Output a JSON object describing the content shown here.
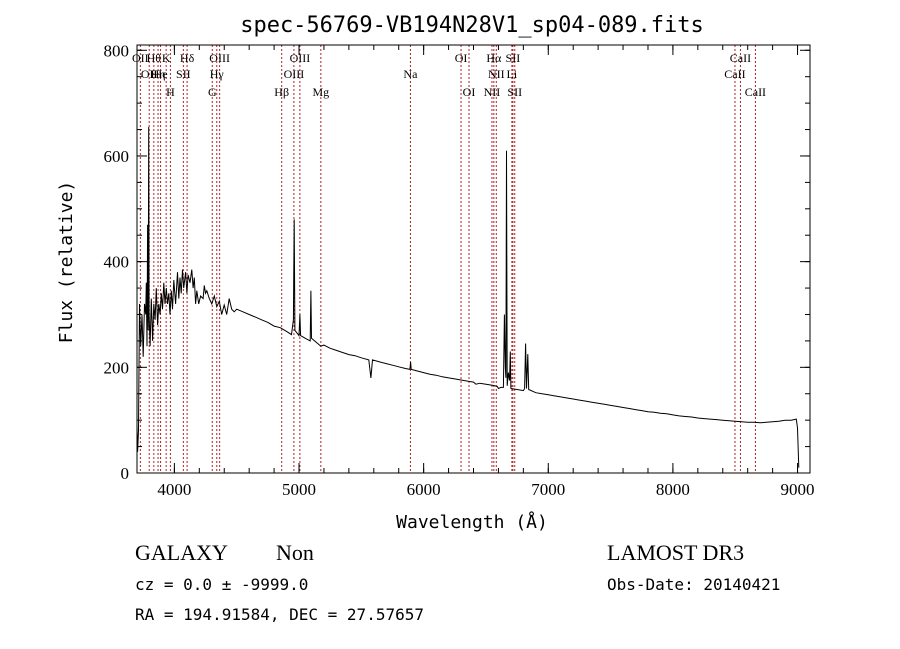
{
  "chart_data": {
    "type": "line",
    "title": "spec-56769-VB194N28V1_sp04-089.fits",
    "xlabel": "Wavelength (Å)",
    "ylabel": "Flux (relative)",
    "xlim": [
      3700,
      9100
    ],
    "ylim": [
      0,
      810
    ],
    "x_ticks": [
      4000,
      5000,
      6000,
      7000,
      8000,
      9000
    ],
    "y_ticks": [
      0,
      200,
      400,
      600,
      800
    ],
    "x_tick_labels": [
      "4000",
      "5000",
      "6000",
      "7000",
      "8000",
      "9000"
    ],
    "y_tick_labels": [
      "0",
      "200",
      "400",
      "600",
      "800"
    ],
    "series": [
      {
        "name": "flux",
        "points": [
          [
            3700,
            90
          ],
          [
            3705,
            40
          ],
          [
            3712,
            80
          ],
          [
            3720,
            320
          ],
          [
            3730,
            240
          ],
          [
            3740,
            300
          ],
          [
            3750,
            220
          ],
          [
            3760,
            320
          ],
          [
            3770,
            300
          ],
          [
            3775,
            360
          ],
          [
            3780,
            240
          ],
          [
            3785,
            470
          ],
          [
            3790,
            270
          ],
          [
            3794,
            655
          ],
          [
            3797,
            300
          ],
          [
            3805,
            240
          ],
          [
            3815,
            330
          ],
          [
            3825,
            250
          ],
          [
            3835,
            320
          ],
          [
            3845,
            290
          ],
          [
            3855,
            350
          ],
          [
            3865,
            280
          ],
          [
            3875,
            320
          ],
          [
            3885,
            300
          ],
          [
            3895,
            340
          ],
          [
            3905,
            310
          ],
          [
            3915,
            360
          ],
          [
            3925,
            320
          ],
          [
            3935,
            350
          ],
          [
            3945,
            320
          ],
          [
            3955,
            340
          ],
          [
            3965,
            300
          ],
          [
            3975,
            345
          ],
          [
            3985,
            310
          ],
          [
            3995,
            365
          ],
          [
            4010,
            320
          ],
          [
            4025,
            380
          ],
          [
            4035,
            330
          ],
          [
            4045,
            370
          ],
          [
            4055,
            340
          ],
          [
            4065,
            385
          ],
          [
            4075,
            350
          ],
          [
            4090,
            380
          ],
          [
            4100,
            340
          ],
          [
            4110,
            375
          ],
          [
            4125,
            360
          ],
          [
            4140,
            385
          ],
          [
            4150,
            350
          ],
          [
            4160,
            370
          ],
          [
            4170,
            320
          ],
          [
            4180,
            345
          ],
          [
            4195,
            320
          ],
          [
            4210,
            335
          ],
          [
            4230,
            330
          ],
          [
            4240,
            355
          ],
          [
            4250,
            340
          ],
          [
            4260,
            345
          ],
          [
            4280,
            330
          ],
          [
            4300,
            320
          ],
          [
            4320,
            335
          ],
          [
            4340,
            315
          ],
          [
            4360,
            325
          ],
          [
            4380,
            300
          ],
          [
            4400,
            318
          ],
          [
            4420,
            300
          ],
          [
            4440,
            330
          ],
          [
            4460,
            310
          ],
          [
            4480,
            305
          ],
          [
            4500,
            310
          ],
          [
            4550,
            305
          ],
          [
            4600,
            300
          ],
          [
            4650,
            295
          ],
          [
            4700,
            290
          ],
          [
            4750,
            285
          ],
          [
            4800,
            278
          ],
          [
            4850,
            275
          ],
          [
            4900,
            268
          ],
          [
            4940,
            262
          ],
          [
            4955,
            290
          ],
          [
            4961,
            480
          ],
          [
            4967,
            270
          ],
          [
            5000,
            260
          ],
          [
            5007,
            300
          ],
          [
            5013,
            260
          ],
          [
            5050,
            255
          ],
          [
            5090,
            250
          ],
          [
            5095,
            345
          ],
          [
            5100,
            255
          ],
          [
            5150,
            245
          ],
          [
            5175,
            240
          ],
          [
            5200,
            242
          ],
          [
            5250,
            236
          ],
          [
            5300,
            232
          ],
          [
            5350,
            228
          ],
          [
            5400,
            224
          ],
          [
            5450,
            222
          ],
          [
            5500,
            218
          ],
          [
            5560,
            214
          ],
          [
            5577,
            180
          ],
          [
            5590,
            214
          ],
          [
            5650,
            210
          ],
          [
            5700,
            207
          ],
          [
            5750,
            204
          ],
          [
            5800,
            201
          ],
          [
            5850,
            198
          ],
          [
            5890,
            196
          ],
          [
            5895,
            210
          ],
          [
            5900,
            196
          ],
          [
            5950,
            193
          ],
          [
            6000,
            190
          ],
          [
            6050,
            187
          ],
          [
            6100,
            185
          ],
          [
            6150,
            182
          ],
          [
            6200,
            180
          ],
          [
            6250,
            178
          ],
          [
            6300,
            176
          ],
          [
            6350,
            174
          ],
          [
            6400,
            172
          ],
          [
            6420,
            168
          ],
          [
            6450,
            170
          ],
          [
            6500,
            168
          ],
          [
            6550,
            166
          ],
          [
            6590,
            164
          ],
          [
            6600,
            160
          ],
          [
            6620,
            162
          ],
          [
            6640,
            162
          ],
          [
            6648,
            300
          ],
          [
            6655,
            200
          ],
          [
            6660,
            180
          ],
          [
            6665,
            610
          ],
          [
            6670,
            165
          ],
          [
            6680,
            190
          ],
          [
            6690,
            175
          ],
          [
            6695,
            230
          ],
          [
            6700,
            160
          ],
          [
            6750,
            158
          ],
          [
            6800,
            156
          ],
          [
            6810,
            160
          ],
          [
            6818,
            245
          ],
          [
            6825,
            160
          ],
          [
            6836,
            225
          ],
          [
            6843,
            158
          ],
          [
            6900,
            152
          ],
          [
            6950,
            150
          ],
          [
            7000,
            148
          ],
          [
            7050,
            146
          ],
          [
            7100,
            144
          ],
          [
            7150,
            142
          ],
          [
            7200,
            140
          ],
          [
            7250,
            138
          ],
          [
            7300,
            136
          ],
          [
            7350,
            134
          ],
          [
            7400,
            132
          ],
          [
            7450,
            130
          ],
          [
            7500,
            128
          ],
          [
            7550,
            126
          ],
          [
            7600,
            124
          ],
          [
            7650,
            122
          ],
          [
            7700,
            120
          ],
          [
            7750,
            118
          ],
          [
            7800,
            116
          ],
          [
            7850,
            115
          ],
          [
            7900,
            113
          ],
          [
            7950,
            112
          ],
          [
            8000,
            110
          ],
          [
            8050,
            108
          ],
          [
            8100,
            107
          ],
          [
            8150,
            106
          ],
          [
            8200,
            104
          ],
          [
            8250,
            103
          ],
          [
            8300,
            102
          ],
          [
            8350,
            101
          ],
          [
            8400,
            100
          ],
          [
            8450,
            99
          ],
          [
            8500,
            98
          ],
          [
            8550,
            97
          ],
          [
            8600,
            96
          ],
          [
            8650,
            96
          ],
          [
            8700,
            95
          ],
          [
            8750,
            96
          ],
          [
            8800,
            97
          ],
          [
            8850,
            98
          ],
          [
            8900,
            100
          ],
          [
            8950,
            100
          ],
          [
            8990,
            102
          ],
          [
            9000,
            85
          ],
          [
            9010,
            10
          ]
        ]
      }
    ],
    "lines": [
      {
        "wl": 3727,
        "labels": [
          "OII"
        ]
      },
      {
        "wl": 3798,
        "labels": [
          "",
          "OII"
        ]
      },
      {
        "wl": 3835,
        "labels": [
          "Hθ"
        ]
      },
      {
        "wl": 3869,
        "labels": [
          "",
          "Hη"
        ]
      },
      {
        "wl": 3889,
        "labels": [
          "",
          "He"
        ]
      },
      {
        "wl": 3934,
        "labels": [
          "K"
        ]
      },
      {
        "wl": 3968,
        "labels": [
          "",
          "",
          "H"
        ]
      },
      {
        "wl": 4072,
        "labels": [
          "",
          "SII"
        ]
      },
      {
        "wl": 4102,
        "labels": [
          "Hδ"
        ]
      },
      {
        "wl": 4304,
        "labels": [
          "",
          "",
          "G"
        ]
      },
      {
        "wl": 4340,
        "labels": [
          "",
          "Hγ"
        ]
      },
      {
        "wl": 4363,
        "labels": [
          "OIII"
        ]
      },
      {
        "wl": 4861,
        "labels": [
          "",
          "",
          "Hβ"
        ]
      },
      {
        "wl": 4959,
        "labels": [
          "",
          "OIII"
        ]
      },
      {
        "wl": 5007,
        "labels": [
          "OIII"
        ]
      },
      {
        "wl": 5175,
        "labels": [
          "",
          "",
          "Mg"
        ]
      },
      {
        "wl": 5894,
        "labels": [
          "",
          "Na"
        ]
      },
      {
        "wl": 6300,
        "labels": [
          "OI"
        ]
      },
      {
        "wl": 6364,
        "labels": [
          "",
          "",
          "OI"
        ]
      },
      {
        "wl": 6548,
        "labels": [
          "",
          "",
          "NII"
        ]
      },
      {
        "wl": 6563,
        "labels": [
          "Hα"
        ]
      },
      {
        "wl": 6583,
        "labels": [
          "",
          "NII"
        ]
      },
      {
        "wl": 6708,
        "labels": [
          "",
          "Li"
        ]
      },
      {
        "wl": 6716,
        "labels": [
          "SII"
        ]
      },
      {
        "wl": 6731,
        "labels": [
          "",
          "",
          "SII"
        ]
      },
      {
        "wl": 8498,
        "labels": [
          "",
          "CaII"
        ]
      },
      {
        "wl": 8542,
        "labels": [
          "CaII"
        ]
      },
      {
        "wl": 8662,
        "labels": [
          "",
          "",
          "CaII"
        ]
      }
    ]
  },
  "footer": {
    "class_label": "GALAXY",
    "subclass_label": "Non",
    "survey_label": "LAMOST DR3",
    "cz_text": "cz = 0.0 ± -9999.0",
    "obsdate_text": "Obs-Date: 20140421",
    "radec_text": "RA = 194.91584, DEC =  27.57657"
  },
  "colors": {
    "spectrum": "#000000",
    "line_markers": "#b22222",
    "axes": "#000000"
  }
}
